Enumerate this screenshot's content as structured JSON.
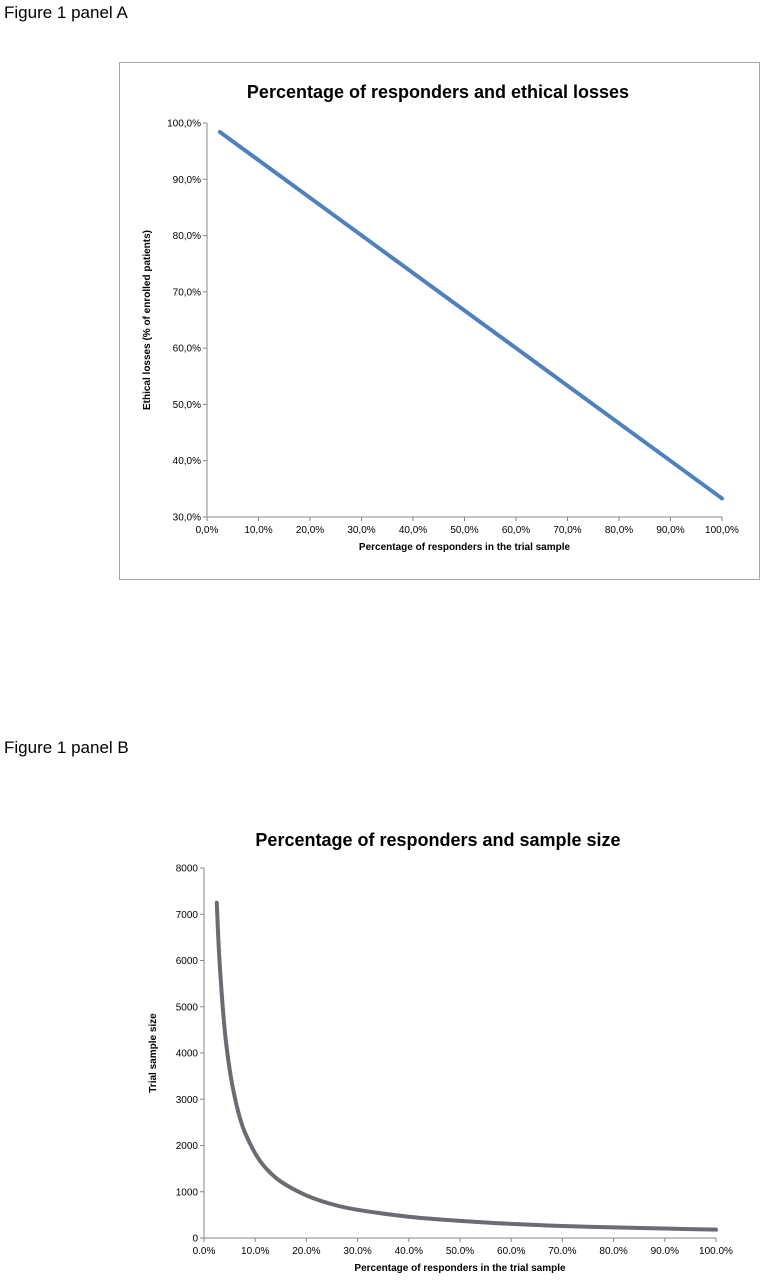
{
  "labels": {
    "panel_a": "Figure 1 panel A",
    "panel_b": "Figure 1 panel B"
  },
  "chart_data": [
    {
      "type": "line",
      "title": "Percentage of responders and ethical losses",
      "xlabel": "Percentage of responders in the trial sample",
      "ylabel": "Ethical losses (% of enrolled patients)",
      "xlim": [
        0,
        100
      ],
      "ylim": [
        30,
        100
      ],
      "x_ticks": [
        "0,0%",
        "10,0%",
        "20,0%",
        "30,0%",
        "40,0%",
        "50,0%",
        "60,0%",
        "70,0%",
        "80,0%",
        "90,0%",
        "100,0%"
      ],
      "y_ticks": [
        "30,0%",
        "40,0%",
        "50,0%",
        "60,0%",
        "70,0%",
        "80,0%",
        "90,0%",
        "100,0%"
      ],
      "grid": false,
      "line_color": "#4f81bd",
      "series": [
        {
          "x": [
            2.5,
            100
          ],
          "y": [
            98.4,
            33.3
          ]
        }
      ]
    },
    {
      "type": "line",
      "title": "Percentage of responders and sample size",
      "xlabel": "Percentage of responders in the trial sample",
      "ylabel": "Trial sample size",
      "xlim": [
        0,
        100
      ],
      "ylim": [
        0,
        8000
      ],
      "x_ticks": [
        "0.0%",
        "10.0%",
        "20.0%",
        "30.0%",
        "40.0%",
        "50.0%",
        "60.0%",
        "70.0%",
        "80.0%",
        "90.0%",
        "100.0%"
      ],
      "y_ticks": [
        "0",
        "1000",
        "2000",
        "3000",
        "4000",
        "5000",
        "6000",
        "7000",
        "8000"
      ],
      "grid": false,
      "line_color": "#6b6b73",
      "series": [
        {
          "x": [
            2.5,
            3,
            4,
            5,
            6,
            7,
            8,
            10,
            12,
            15,
            20,
            25,
            30,
            40,
            50,
            60,
            70,
            80,
            90,
            100
          ],
          "y": [
            7250,
            6050,
            4550,
            3650,
            3050,
            2600,
            2280,
            1830,
            1520,
            1220,
            920,
            730,
            610,
            460,
            370,
            305,
            260,
            230,
            205,
            180
          ]
        }
      ]
    }
  ]
}
